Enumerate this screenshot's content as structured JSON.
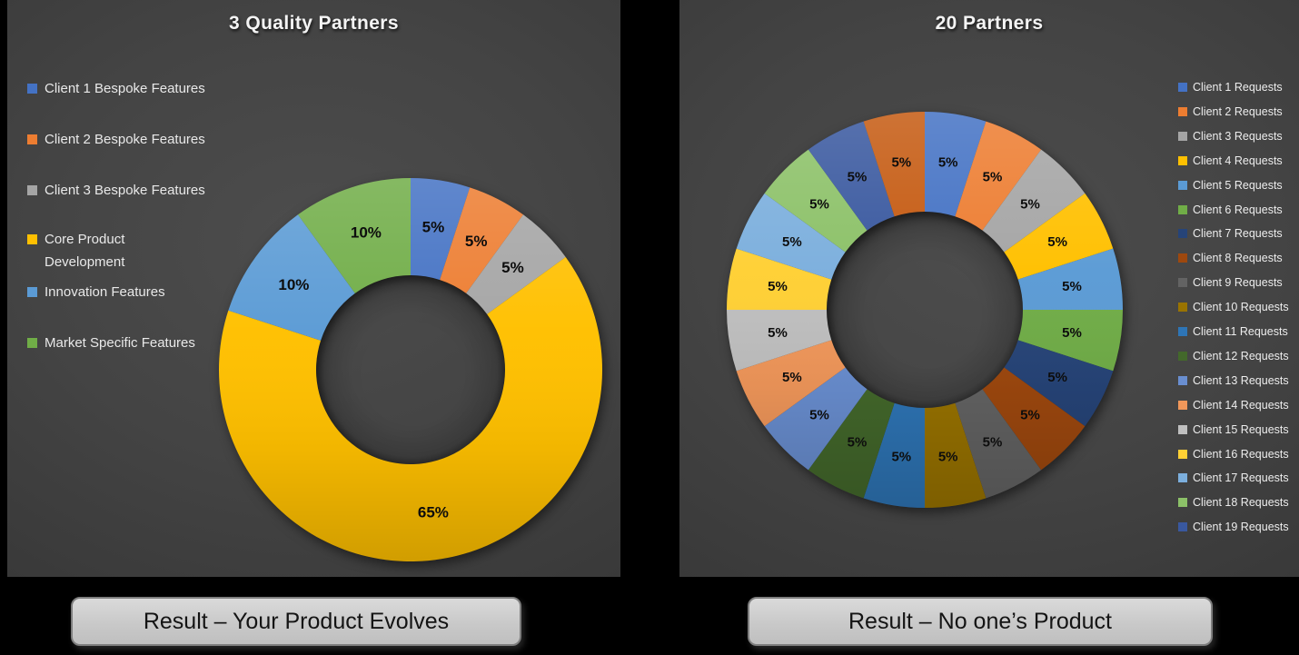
{
  "slide": {
    "background_color": "#000000",
    "panel_gradient_center": "#4d4d4d",
    "panel_gradient_edge": "#2e2e2e",
    "data_label_color": "#0d0d0d",
    "title_color": "#f4f4f4",
    "button_fill": "#c9c9c9",
    "button_text_color": "#141414"
  },
  "panels": [
    {
      "id": "left",
      "title": "3 Quality Partners",
      "legend": [
        {
          "label": "Client 1 Bespoke Features",
          "color": "#4472C4"
        },
        {
          "label": "Client 2 Bespoke Features",
          "color": "#ED7D31"
        },
        {
          "label": "Client 3 Bespoke Features",
          "color": "#A5A5A5"
        },
        {
          "label": "Core Product Development",
          "color": "#FFC000",
          "wrap": true
        },
        {
          "label": "Innovation Features",
          "color": "#5B9BD5"
        },
        {
          "label": "Market Specific Features",
          "color": "#70AD47"
        }
      ],
      "result_label": "Result – Your Product Evolves"
    },
    {
      "id": "right",
      "title": "20 Partners",
      "legend": [
        {
          "label": "Client 1 Requests",
          "color": "#4472C4"
        },
        {
          "label": "Client 2 Requests",
          "color": "#ED7D31"
        },
        {
          "label": "Client 3 Requests",
          "color": "#A5A5A5"
        },
        {
          "label": "Client 4 Requests",
          "color": "#FFC000"
        },
        {
          "label": "Client 5 Requests",
          "color": "#5B9BD5"
        },
        {
          "label": "Client 6 Requests",
          "color": "#70AD47"
        },
        {
          "label": "Client 7 Requests",
          "color": "#264478"
        },
        {
          "label": "Client 8 Requests",
          "color": "#9E480E"
        },
        {
          "label": "Client 9 Requests",
          "color": "#636363"
        },
        {
          "label": "Client 10 Requests",
          "color": "#997300"
        },
        {
          "label": "Client 11 Requests",
          "color": "#2E75B6"
        },
        {
          "label": "Client 12 Requests",
          "color": "#43682B"
        },
        {
          "label": "Client 13 Requests",
          "color": "#698ED0"
        },
        {
          "label": "Client 14 Requests",
          "color": "#F1975A"
        },
        {
          "label": "Client 15 Requests",
          "color": "#BFBFBF"
        },
        {
          "label": "Client 16 Requests",
          "color": "#FFD034"
        },
        {
          "label": "Client 17 Requests",
          "color": "#7CAFDD"
        },
        {
          "label": "Client 18 Requests",
          "color": "#8CC168"
        },
        {
          "label": "Client 19 Requests",
          "color": "#39589F"
        }
      ],
      "result_label": "Result – No one’s Product"
    }
  ],
  "chart_data": [
    {
      "type": "pie",
      "subtype": "donut",
      "title": "3 Quality Partners",
      "labels": [
        "Client 1 Bespoke Features",
        "Client 2 Bespoke Features",
        "Client 3 Bespoke Features",
        "Core Product Development",
        "Innovation Features",
        "Market Specific Features"
      ],
      "values": [
        5,
        5,
        5,
        65,
        10,
        10
      ],
      "unit": "%",
      "data_labels": [
        "5%",
        "5%",
        "5%",
        "65%",
        "10%",
        "10%"
      ],
      "colors": [
        "#4472C4",
        "#ED7D31",
        "#A5A5A5",
        "#FFC000",
        "#5B9BD5",
        "#70AD47"
      ],
      "hole_ratio": 0.49,
      "start_angle_deg": 0,
      "direction": "clockwise",
      "legend_position": "left"
    },
    {
      "type": "pie",
      "subtype": "donut",
      "title": "20 Partners",
      "segment_count": 20,
      "values": [
        5,
        5,
        5,
        5,
        5,
        5,
        5,
        5,
        5,
        5,
        5,
        5,
        5,
        5,
        5,
        5,
        5,
        5,
        5,
        5
      ],
      "unit": "%",
      "data_labels": [
        "5%",
        "5%",
        "5%",
        "5%",
        "5%",
        "5%",
        "5%",
        "5%",
        "5%",
        "5%",
        "5%",
        "5%",
        "5%",
        "5%",
        "5%",
        "5%",
        "5%",
        "5%",
        "5%",
        "5%"
      ],
      "colors": [
        "#4472C4",
        "#ED7D31",
        "#A5A5A5",
        "#FFC000",
        "#5B9BD5",
        "#70AD47",
        "#264478",
        "#9E480E",
        "#636363",
        "#997300",
        "#2E75B6",
        "#43682B",
        "#698ED0",
        "#F1975A",
        "#BFBFBF",
        "#FFD034",
        "#7CAFDD",
        "#8CC168",
        "#39589F",
        "#C55A11"
      ],
      "legend_labels_visible": [
        "Client 1 Requests",
        "Client 2 Requests",
        "Client 3 Requests",
        "Client 4 Requests",
        "Client 5 Requests",
        "Client 6 Requests",
        "Client 7 Requests",
        "Client 8 Requests",
        "Client 9 Requests",
        "Client 10 Requests",
        "Client 11 Requests",
        "Client 12 Requests",
        "Client 13 Requests",
        "Client 14 Requests",
        "Client 15 Requests",
        "Client 16 Requests",
        "Client 17 Requests",
        "Client 18 Requests",
        "Client 19 Requests"
      ],
      "hole_ratio": 0.5,
      "start_angle_deg": 0,
      "direction": "clockwise",
      "legend_position": "right"
    }
  ]
}
